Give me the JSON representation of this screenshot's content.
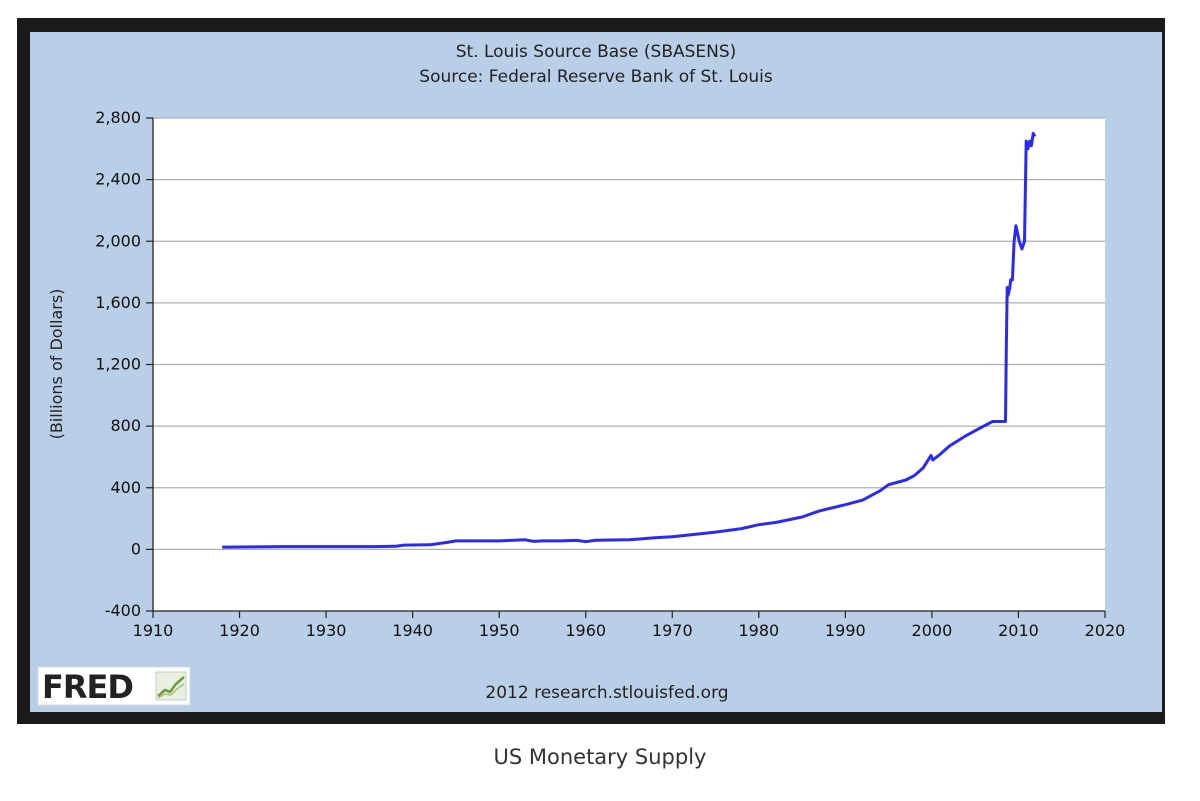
{
  "caption": "US Monetary Supply",
  "logo": {
    "text": "FRED",
    "icon": "chart-trend-icon"
  },
  "credit": "2012 research.stlouisfed.org",
  "colors": {
    "frame": "#1a1a1a",
    "panel": "#b9cfe7",
    "plot_bg": "#ffffff",
    "grid": "#b0b0b0",
    "line": "#2a2af0"
  },
  "chart_data": {
    "type": "line",
    "title": "St. Louis Source Base (SBASENS)",
    "subtitle": "Source: Federal Reserve Bank of St. Louis",
    "xlabel": "",
    "ylabel": "(Billions of Dollars)",
    "xlim": [
      1910,
      2020
    ],
    "ylim": [
      -400,
      2800
    ],
    "x_ticks": [
      1910,
      1920,
      1930,
      1940,
      1950,
      1960,
      1970,
      1980,
      1990,
      2000,
      2010,
      2020
    ],
    "x_tick_labels": [
      "1910",
      "1920",
      "1930",
      "1940",
      "1950",
      "1960",
      "1970",
      "1980",
      "1990",
      "2000",
      "2010",
      "2020"
    ],
    "y_ticks": [
      -400,
      0,
      400,
      800,
      1200,
      1600,
      2000,
      2400,
      2800
    ],
    "y_tick_labels": [
      "-400",
      "0",
      "400",
      "800",
      "1,200",
      "1,600",
      "2,000",
      "2,400",
      "2,800"
    ],
    "grid": true,
    "series": [
      {
        "name": "SBASENS",
        "x": [
          1918,
          1925,
          1930,
          1935,
          1938,
          1939,
          1942,
          1944,
          1945,
          1950,
          1953,
          1954,
          1955,
          1957,
          1959,
          1960,
          1961,
          1962,
          1965,
          1968,
          1970,
          1973,
          1975,
          1978,
          1980,
          1982,
          1985,
          1987,
          1990,
          1992,
          1994,
          1995,
          1997,
          1998,
          1999,
          1999.9,
          2000.1,
          2001,
          2002,
          2004,
          2006,
          2007,
          2008.5,
          2008.6,
          2008.7,
          2008.8,
          2009,
          2009.1,
          2009.3,
          2009.5,
          2009.7,
          2009.9,
          2010.1,
          2010.4,
          2010.7,
          2010.9,
          2011.1,
          2011.3,
          2011.5,
          2011.7,
          2011.9
        ],
        "values": [
          15,
          18,
          18,
          18,
          20,
          28,
          30,
          45,
          55,
          55,
          62,
          52,
          55,
          55,
          58,
          50,
          58,
          60,
          62,
          75,
          82,
          100,
          112,
          135,
          160,
          175,
          210,
          250,
          290,
          320,
          380,
          420,
          450,
          480,
          530,
          610,
          580,
          620,
          670,
          740,
          800,
          830,
          830,
          1300,
          1700,
          1650,
          1700,
          1750,
          1750,
          2000,
          2100,
          2050,
          2000,
          1950,
          2000,
          2650,
          2600,
          2650,
          2620,
          2700,
          2680
        ]
      }
    ]
  }
}
